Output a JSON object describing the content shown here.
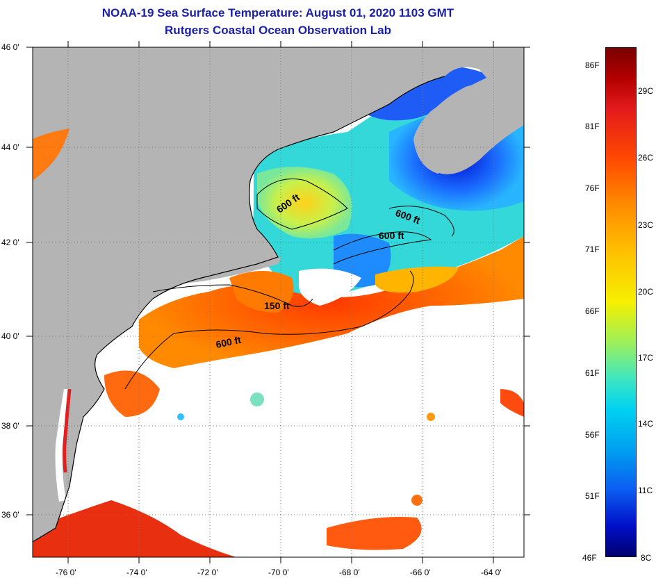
{
  "title": {
    "line1": "NOAA-19 Sea Surface Temperature:  August 01, 2020 1103 GMT",
    "line2": "Rutgers Coastal Ocean Observation Lab"
  },
  "map": {
    "lat_labels": [
      "46 0'",
      "44 0'",
      "42 0'",
      "40 0'",
      "38 0'",
      "36 0'"
    ],
    "lon_labels": [
      "-76 0'",
      "-74 0'",
      "-72 0'",
      "-70 0'",
      "-68 0'",
      "-66 0'",
      "-64 0'"
    ],
    "contour_labels": [
      "600 ft",
      "600 ft",
      "600 ft",
      "150 ft",
      "600 ft"
    ],
    "colors": {
      "land": "#b4b4b4",
      "cloud": "#ffffff",
      "warm": "#ff5a00",
      "cool": "#2aa8ff",
      "cold": "#0a3cf0"
    }
  },
  "colorbar": {
    "fahrenheit": [
      "86F",
      "81F",
      "76F",
      "71F",
      "66F",
      "61F",
      "56F",
      "51F",
      "46F"
    ],
    "celsius": [
      "29C",
      "26C",
      "23C",
      "20C",
      "17C",
      "14C",
      "11C",
      "8C"
    ]
  }
}
